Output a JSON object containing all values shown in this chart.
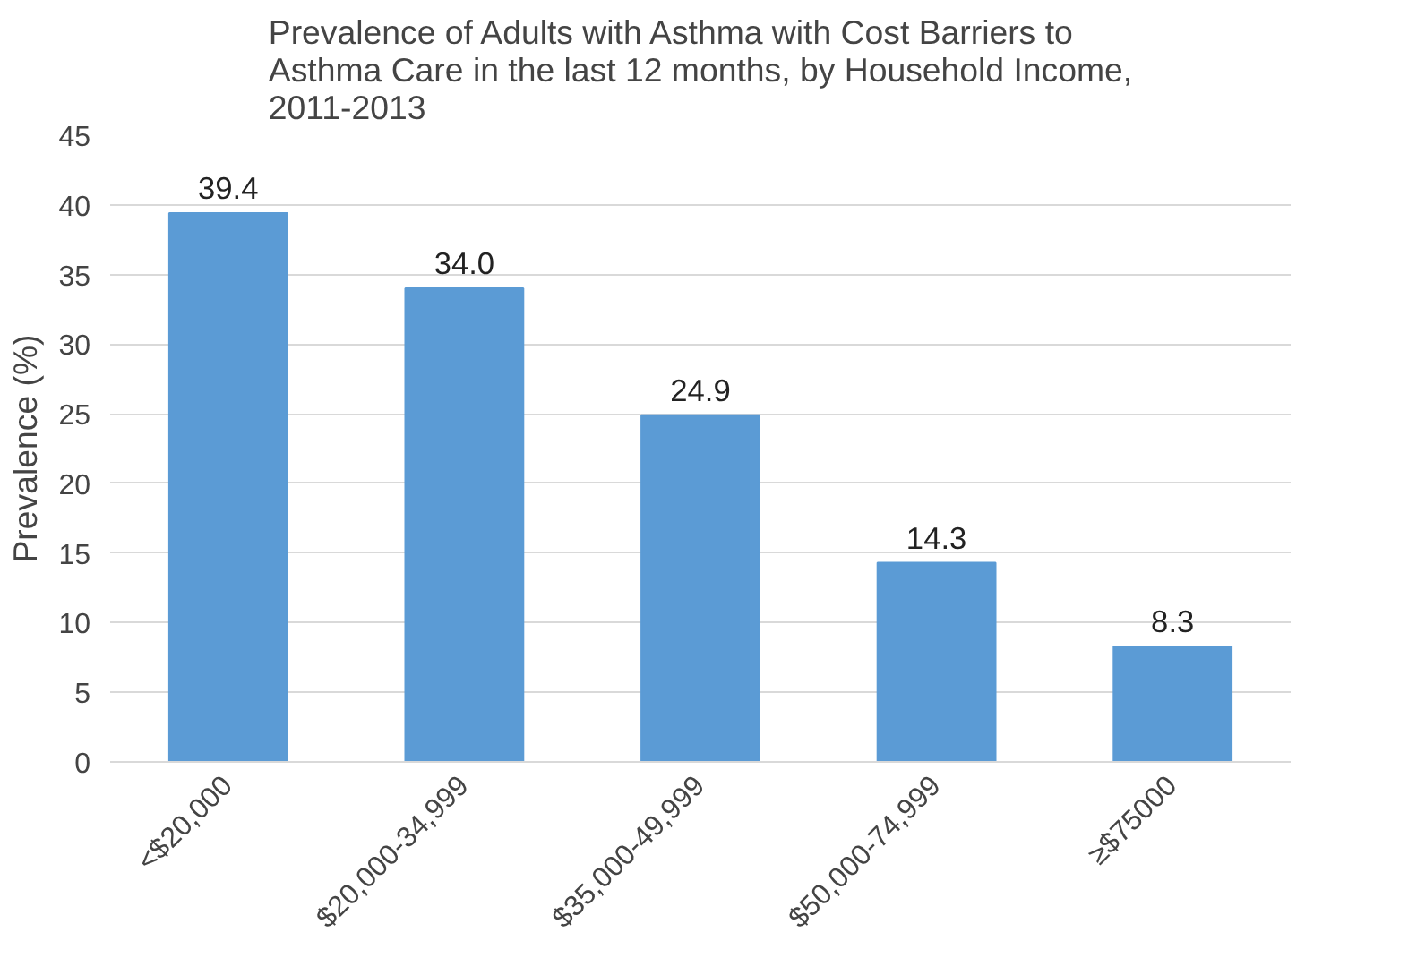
{
  "chart_data": {
    "type": "bar",
    "title": "Prevalence of Adults with Asthma with Cost Barriers to Asthma Care in the last 12 months, by Household Income, 2011-2013",
    "ylabel": "Prevalence (%)",
    "categories": [
      "<$20,000",
      "$20,000-34,999",
      "$35,000-49,999",
      "$50,000-74,999",
      "≥$75000"
    ],
    "values": [
      39.4,
      34.0,
      24.9,
      14.3,
      8.3
    ],
    "value_labels": [
      "39.4",
      "34.0",
      "24.9",
      "14.3",
      "8.3"
    ],
    "color": "#5b9bd5",
    "ylim": [
      0,
      45
    ],
    "yticks": [
      0,
      5,
      10,
      15,
      20,
      25,
      30,
      35,
      40,
      45
    ],
    "grid": "y"
  }
}
